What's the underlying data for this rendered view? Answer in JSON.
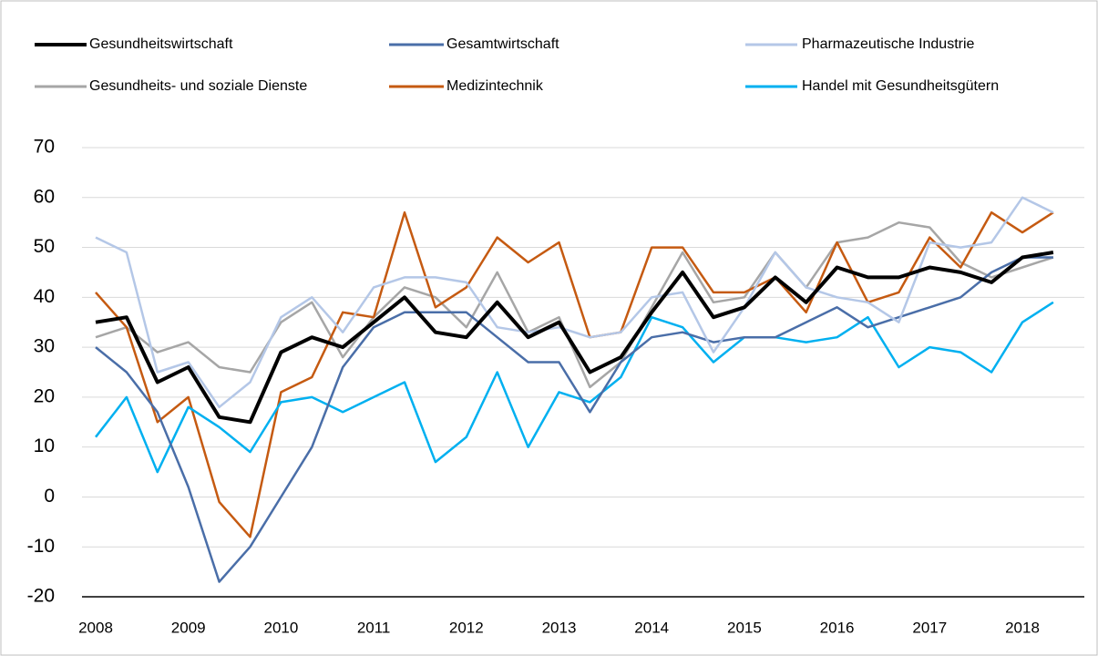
{
  "chart_data": {
    "type": "line",
    "categories": [
      "2008",
      null,
      null,
      "2009",
      null,
      null,
      "2010",
      null,
      null,
      "2011",
      null,
      null,
      "2012",
      null,
      null,
      "2013",
      null,
      null,
      "2014",
      null,
      null,
      "2015",
      null,
      null,
      "2016",
      null,
      null,
      "2017",
      null,
      null,
      "2018",
      null
    ],
    "series": [
      {
        "name": "Gesundheitswirtschaft",
        "color": "#000000",
        "values": [
          35,
          36,
          23,
          26,
          16,
          15,
          29,
          32,
          30,
          35,
          40,
          33,
          32,
          39,
          32,
          35,
          25,
          28,
          37,
          45,
          36,
          38,
          44,
          39,
          46,
          44,
          44,
          46,
          45,
          43,
          48,
          49
        ]
      },
      {
        "name": "Gesamtwirtschaft",
        "color": "#4a6ea8",
        "values": [
          30,
          25,
          17,
          2,
          -17,
          -10,
          0,
          10,
          26,
          34,
          37,
          37,
          37,
          32,
          27,
          27,
          17,
          27,
          32,
          33,
          31,
          32,
          32,
          35,
          38,
          34,
          36,
          38,
          40,
          45,
          48,
          48
        ]
      },
      {
        "name": "Pharmazeutische Industrie",
        "color": "#b4c7e7",
        "values": [
          52,
          49,
          25,
          27,
          18,
          23,
          36,
          40,
          33,
          42,
          44,
          44,
          43,
          34,
          33,
          34,
          32,
          33,
          40,
          41,
          29,
          38,
          49,
          42,
          40,
          39,
          35,
          51,
          50,
          51,
          60,
          57
        ]
      },
      {
        "name": "Gesundheits- und soziale Dienste",
        "color": "#a6a6a6",
        "values": [
          32,
          34,
          29,
          31,
          26,
          25,
          35,
          39,
          28,
          36,
          42,
          40,
          34,
          45,
          33,
          36,
          22,
          27,
          38,
          49,
          39,
          40,
          49,
          42,
          51,
          52,
          55,
          54,
          47,
          44,
          46,
          48
        ]
      },
      {
        "name": "Medizintechnik",
        "color": "#c55a11",
        "values": [
          41,
          34,
          15,
          20,
          -1,
          -8,
          21,
          24,
          37,
          36,
          57,
          38,
          42,
          52,
          47,
          51,
          32,
          33,
          50,
          50,
          41,
          41,
          44,
          37,
          51,
          39,
          41,
          52,
          46,
          57,
          53,
          57
        ]
      },
      {
        "name": "Handel mit Gesundheitsgütern",
        "color": "#00b0f0",
        "values": [
          12,
          20,
          5,
          18,
          14,
          9,
          19,
          20,
          17,
          20,
          23,
          7,
          12,
          25,
          10,
          21,
          19,
          24,
          36,
          34,
          27,
          32,
          32,
          31,
          32,
          36,
          26,
          30,
          29,
          25,
          35,
          39
        ]
      }
    ],
    "ylim": [
      -20,
      70
    ],
    "yticks": [
      -20,
      -10,
      0,
      10,
      20,
      30,
      40,
      50,
      60,
      70
    ],
    "grid": true
  }
}
